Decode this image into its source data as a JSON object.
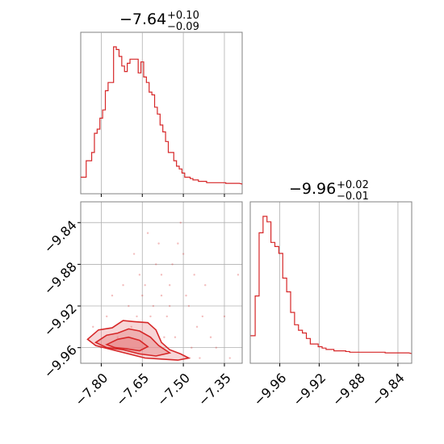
{
  "colors": {
    "series": "#d62728",
    "fill": "#e88a8b",
    "grid": "#b0b0b0",
    "frame": "#808080"
  },
  "chart_data": [
    {
      "id": "hist-p1",
      "type": "histogram",
      "title": {
        "value": "−7.64",
        "upper": "+0.10",
        "lower": "−0.09"
      },
      "xlim": [
        -7.875,
        -7.285
      ],
      "xticks": [
        -7.8,
        -7.65,
        -7.5,
        -7.35
      ],
      "tick_labels_shown": false,
      "grid": true,
      "bins": [
        {
          "x": -7.87,
          "h": 0.05
        },
        {
          "x": -7.86,
          "h": 0.05
        },
        {
          "x": -7.85,
          "h": 0.17
        },
        {
          "x": -7.84,
          "h": 0.17
        },
        {
          "x": -7.83,
          "h": 0.23
        },
        {
          "x": -7.82,
          "h": 0.37
        },
        {
          "x": -7.81,
          "h": 0.4
        },
        {
          "x": -7.8,
          "h": 0.48
        },
        {
          "x": -7.79,
          "h": 0.54
        },
        {
          "x": -7.78,
          "h": 0.68
        },
        {
          "x": -7.77,
          "h": 0.74
        },
        {
          "x": -7.76,
          "h": 0.74
        },
        {
          "x": -7.75,
          "h": 1.0
        },
        {
          "x": -7.74,
          "h": 0.98
        },
        {
          "x": -7.73,
          "h": 0.93
        },
        {
          "x": -7.72,
          "h": 0.86
        },
        {
          "x": -7.71,
          "h": 0.82
        },
        {
          "x": -7.7,
          "h": 0.88
        },
        {
          "x": -7.69,
          "h": 0.91
        },
        {
          "x": -7.68,
          "h": 0.91
        },
        {
          "x": -7.67,
          "h": 0.91
        },
        {
          "x": -7.66,
          "h": 0.81
        },
        {
          "x": -7.65,
          "h": 0.89
        },
        {
          "x": -7.64,
          "h": 0.78
        },
        {
          "x": -7.63,
          "h": 0.74
        },
        {
          "x": -7.62,
          "h": 0.67
        },
        {
          "x": -7.61,
          "h": 0.65
        },
        {
          "x": -7.6,
          "h": 0.56
        },
        {
          "x": -7.59,
          "h": 0.51
        },
        {
          "x": -7.58,
          "h": 0.43
        },
        {
          "x": -7.57,
          "h": 0.38
        },
        {
          "x": -7.56,
          "h": 0.31
        },
        {
          "x": -7.55,
          "h": 0.23
        },
        {
          "x": -7.54,
          "h": 0.23
        },
        {
          "x": -7.53,
          "h": 0.17
        },
        {
          "x": -7.52,
          "h": 0.13
        },
        {
          "x": -7.51,
          "h": 0.11
        },
        {
          "x": -7.5,
          "h": 0.08
        },
        {
          "x": -7.49,
          "h": 0.05
        },
        {
          "x": -7.48,
          "h": 0.05
        },
        {
          "x": -7.47,
          "h": 0.04
        },
        {
          "x": -7.46,
          "h": 0.03
        },
        {
          "x": -7.45,
          "h": 0.03
        },
        {
          "x": -7.44,
          "h": 0.02
        },
        {
          "x": -7.43,
          "h": 0.02
        },
        {
          "x": -7.42,
          "h": 0.02
        },
        {
          "x": -7.41,
          "h": 0.01
        },
        {
          "x": -7.4,
          "h": 0.01
        },
        {
          "x": -7.39,
          "h": 0.01
        },
        {
          "x": -7.38,
          "h": 0.01
        },
        {
          "x": -7.37,
          "h": 0.01
        },
        {
          "x": -7.36,
          "h": 0.01
        },
        {
          "x": -7.35,
          "h": 0.01
        },
        {
          "x": -7.34,
          "h": 0.005
        },
        {
          "x": -7.32,
          "h": 0.005
        },
        {
          "x": -7.3,
          "h": 0.005
        }
      ]
    },
    {
      "id": "scatter-2d",
      "type": "scatter",
      "xlim": [
        -7.875,
        -7.285
      ],
      "ylim": [
        -9.975,
        -9.82
      ],
      "xticks": [
        -7.8,
        -7.65,
        -7.5,
        -7.35
      ],
      "xtick_labels": [
        "−7.80",
        "−7.65",
        "−7.50",
        "−7.35"
      ],
      "yticks": [
        -9.84,
        -9.88,
        -9.92,
        -9.96
      ],
      "ytick_labels": [
        "−9.84",
        "−9.88",
        "−9.92",
        "−9.96"
      ],
      "grid": true,
      "points": [
        {
          "x": -7.62,
          "y": -9.93
        },
        {
          "x": -7.58,
          "y": -9.91
        },
        {
          "x": -7.55,
          "y": -9.9
        },
        {
          "x": -7.66,
          "y": -9.89
        },
        {
          "x": -7.7,
          "y": -9.92
        },
        {
          "x": -7.52,
          "y": -9.86
        },
        {
          "x": -7.5,
          "y": -9.87
        },
        {
          "x": -7.6,
          "y": -9.88
        },
        {
          "x": -7.64,
          "y": -9.9
        },
        {
          "x": -7.56,
          "y": -9.93
        },
        {
          "x": -7.48,
          "y": -9.92
        },
        {
          "x": -7.45,
          "y": -9.94
        },
        {
          "x": -7.42,
          "y": -9.9
        },
        {
          "x": -7.4,
          "y": -9.95
        },
        {
          "x": -7.35,
          "y": -9.93
        },
        {
          "x": -7.3,
          "y": -9.89
        },
        {
          "x": -7.72,
          "y": -9.9
        },
        {
          "x": -7.76,
          "y": -9.91
        },
        {
          "x": -7.78,
          "y": -9.93
        },
        {
          "x": -7.68,
          "y": -9.87
        },
        {
          "x": -7.63,
          "y": -9.85
        },
        {
          "x": -7.59,
          "y": -9.86
        },
        {
          "x": -7.54,
          "y": -9.88
        },
        {
          "x": -7.51,
          "y": -9.84
        },
        {
          "x": -7.57,
          "y": -9.95
        },
        {
          "x": -7.53,
          "y": -9.95
        },
        {
          "x": -7.47,
          "y": -9.96
        },
        {
          "x": -7.44,
          "y": -9.97
        },
        {
          "x": -7.38,
          "y": -9.96
        },
        {
          "x": -7.33,
          "y": -9.97
        },
        {
          "x": -7.69,
          "y": -9.94
        },
        {
          "x": -7.74,
          "y": -9.95
        },
        {
          "x": -7.8,
          "y": -9.96
        },
        {
          "x": -7.83,
          "y": -9.94
        },
        {
          "x": -7.61,
          "y": -9.92
        },
        {
          "x": -7.65,
          "y": -9.91
        },
        {
          "x": -7.58,
          "y": -9.89
        },
        {
          "x": -7.49,
          "y": -9.91
        },
        {
          "x": -7.46,
          "y": -9.89
        },
        {
          "x": -7.43,
          "y": -9.93
        },
        {
          "x": -7.55,
          "y": -9.92
        },
        {
          "x": -7.67,
          "y": -9.93
        }
      ],
      "contours": [
        {
          "level": 1,
          "points": [
            {
              "x": -7.85,
              "y": -9.952
            },
            {
              "x": -7.81,
              "y": -9.943
            },
            {
              "x": -7.76,
              "y": -9.941
            },
            {
              "x": -7.72,
              "y": -9.934
            },
            {
              "x": -7.68,
              "y": -9.935
            },
            {
              "x": -7.63,
              "y": -9.936
            },
            {
              "x": -7.6,
              "y": -9.943
            },
            {
              "x": -7.58,
              "y": -9.955
            },
            {
              "x": -7.55,
              "y": -9.962
            },
            {
              "x": -7.51,
              "y": -9.966
            },
            {
              "x": -7.48,
              "y": -9.97
            },
            {
              "x": -7.52,
              "y": -9.972
            },
            {
              "x": -7.58,
              "y": -9.971
            },
            {
              "x": -7.64,
              "y": -9.97
            },
            {
              "x": -7.7,
              "y": -9.966
            },
            {
              "x": -7.76,
              "y": -9.962
            },
            {
              "x": -7.82,
              "y": -9.958
            }
          ]
        },
        {
          "level": 2,
          "points": [
            {
              "x": -7.82,
              "y": -9.955
            },
            {
              "x": -7.78,
              "y": -9.948
            },
            {
              "x": -7.74,
              "y": -9.946
            },
            {
              "x": -7.7,
              "y": -9.942
            },
            {
              "x": -7.66,
              "y": -9.944
            },
            {
              "x": -7.62,
              "y": -9.95
            },
            {
              "x": -7.59,
              "y": -9.958
            },
            {
              "x": -7.55,
              "y": -9.965
            },
            {
              "x": -7.6,
              "y": -9.968
            },
            {
              "x": -7.66,
              "y": -9.966
            },
            {
              "x": -7.72,
              "y": -9.962
            },
            {
              "x": -7.78,
              "y": -9.96
            }
          ]
        },
        {
          "level": 3,
          "points": [
            {
              "x": -7.78,
              "y": -9.957
            },
            {
              "x": -7.74,
              "y": -9.952
            },
            {
              "x": -7.7,
              "y": -9.95
            },
            {
              "x": -7.66,
              "y": -9.953
            },
            {
              "x": -7.63,
              "y": -9.959
            },
            {
              "x": -7.66,
              "y": -9.963
            },
            {
              "x": -7.71,
              "y": -9.961
            },
            {
              "x": -7.75,
              "y": -9.96
            }
          ]
        }
      ]
    },
    {
      "id": "hist-p2",
      "type": "histogram",
      "title": {
        "value": "−9.96",
        "upper": "+0.02",
        "lower": "−0.01"
      },
      "xlim": [
        -9.99,
        -9.826
      ],
      "xticks": [
        -9.96,
        -9.92,
        -9.88,
        -9.84
      ],
      "xtick_labels": [
        "−9.96",
        "−9.92",
        "−9.88",
        "−9.84"
      ],
      "grid": true,
      "bins": [
        {
          "x": -9.987,
          "h": 0.13
        },
        {
          "x": -9.983,
          "h": 0.42
        },
        {
          "x": -9.979,
          "h": 0.88
        },
        {
          "x": -9.975,
          "h": 1.0
        },
        {
          "x": -9.971,
          "h": 0.96
        },
        {
          "x": -9.967,
          "h": 0.81
        },
        {
          "x": -9.963,
          "h": 0.78
        },
        {
          "x": -9.959,
          "h": 0.73
        },
        {
          "x": -9.955,
          "h": 0.55
        },
        {
          "x": -9.951,
          "h": 0.45
        },
        {
          "x": -9.947,
          "h": 0.3
        },
        {
          "x": -9.943,
          "h": 0.21
        },
        {
          "x": -9.939,
          "h": 0.17
        },
        {
          "x": -9.935,
          "h": 0.15
        },
        {
          "x": -9.931,
          "h": 0.11
        },
        {
          "x": -9.927,
          "h": 0.07
        },
        {
          "x": -9.923,
          "h": 0.07
        },
        {
          "x": -9.919,
          "h": 0.05
        },
        {
          "x": -9.915,
          "h": 0.04
        },
        {
          "x": -9.911,
          "h": 0.03
        },
        {
          "x": -9.907,
          "h": 0.03
        },
        {
          "x": -9.903,
          "h": 0.02
        },
        {
          "x": -9.899,
          "h": 0.02
        },
        {
          "x": -9.895,
          "h": 0.02
        },
        {
          "x": -9.891,
          "h": 0.015
        },
        {
          "x": -9.887,
          "h": 0.01
        },
        {
          "x": -9.883,
          "h": 0.01
        },
        {
          "x": -9.879,
          "h": 0.01
        },
        {
          "x": -9.875,
          "h": 0.01
        },
        {
          "x": -9.871,
          "h": 0.01
        },
        {
          "x": -9.867,
          "h": 0.01
        },
        {
          "x": -9.863,
          "h": 0.01
        },
        {
          "x": -9.859,
          "h": 0.01
        },
        {
          "x": -9.855,
          "h": 0.01
        },
        {
          "x": -9.851,
          "h": 0.005
        },
        {
          "x": -9.847,
          "h": 0.005
        },
        {
          "x": -9.843,
          "h": 0.005
        },
        {
          "x": -9.839,
          "h": 0.005
        },
        {
          "x": -9.835,
          "h": 0.005
        },
        {
          "x": -9.831,
          "h": 0.005
        }
      ]
    }
  ]
}
